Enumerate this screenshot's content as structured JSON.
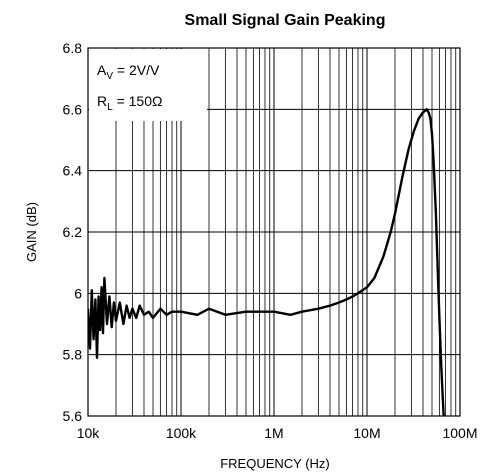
{
  "chart_data": {
    "type": "line",
    "title": "Small Signal Gain Peaking",
    "xlabel": "FREQUENCY (Hz)",
    "ylabel": "GAIN (dB)",
    "x_scale": "log",
    "xlim": [
      10000,
      100000000
    ],
    "ylim": [
      5.6,
      6.8
    ],
    "x_ticks": [
      10000,
      100000,
      1000000,
      10000000,
      100000000
    ],
    "x_tick_labels": [
      "10k",
      "100k",
      "1M",
      "10M",
      "100M"
    ],
    "y_ticks": [
      5.6,
      5.8,
      6.0,
      6.2,
      6.4,
      6.6,
      6.8
    ],
    "y_tick_labels": [
      "5.6",
      "5.8",
      "6",
      "6.2",
      "6.4",
      "6.6",
      "6.8"
    ],
    "grid": true,
    "annotations": [
      {
        "main": "A",
        "sub": "V",
        "rest": " = 2V/V"
      },
      {
        "main": "R",
        "sub": "L",
        "rest": " = 150Ω"
      }
    ],
    "series": [
      {
        "color": "#000000",
        "x": [
          10000,
          10500,
          11000,
          11500,
          12000,
          12500,
          13000,
          13500,
          14000,
          14500,
          15000,
          16000,
          17000,
          18000,
          19000,
          20000,
          22000,
          24000,
          26000,
          28000,
          30000,
          33000,
          36000,
          40000,
          45000,
          50000,
          60000,
          70000,
          80000,
          100000,
          150000,
          200000,
          300000,
          500000,
          700000,
          1000000,
          1500000,
          2000000,
          3000000,
          4000000,
          5000000,
          6000000,
          7000000,
          8000000,
          10000000,
          12000000,
          15000000,
          18000000,
          20000000,
          24000000,
          28000000,
          32000000,
          36000000,
          40000000,
          44000000,
          46000000,
          48000000,
          50000000,
          52000000,
          55000000,
          58000000,
          60000000,
          63000000,
          66000000,
          68000000,
          70000000
        ],
        "y": [
          5.95,
          5.82,
          6.01,
          5.85,
          5.98,
          5.79,
          5.99,
          5.88,
          6.02,
          5.87,
          6.05,
          5.9,
          5.99,
          5.89,
          5.97,
          5.91,
          5.97,
          5.9,
          5.96,
          5.92,
          5.95,
          5.92,
          5.96,
          5.93,
          5.94,
          5.92,
          5.95,
          5.93,
          5.94,
          5.94,
          5.93,
          5.95,
          5.93,
          5.94,
          5.94,
          5.94,
          5.93,
          5.94,
          5.95,
          5.96,
          5.97,
          5.98,
          5.99,
          6.0,
          6.02,
          6.05,
          6.12,
          6.2,
          6.26,
          6.38,
          6.47,
          6.53,
          6.57,
          6.59,
          6.6,
          6.59,
          6.57,
          6.52,
          6.43,
          6.26,
          6.05,
          5.92,
          5.76,
          5.63,
          5.56,
          5.5
        ]
      }
    ]
  }
}
